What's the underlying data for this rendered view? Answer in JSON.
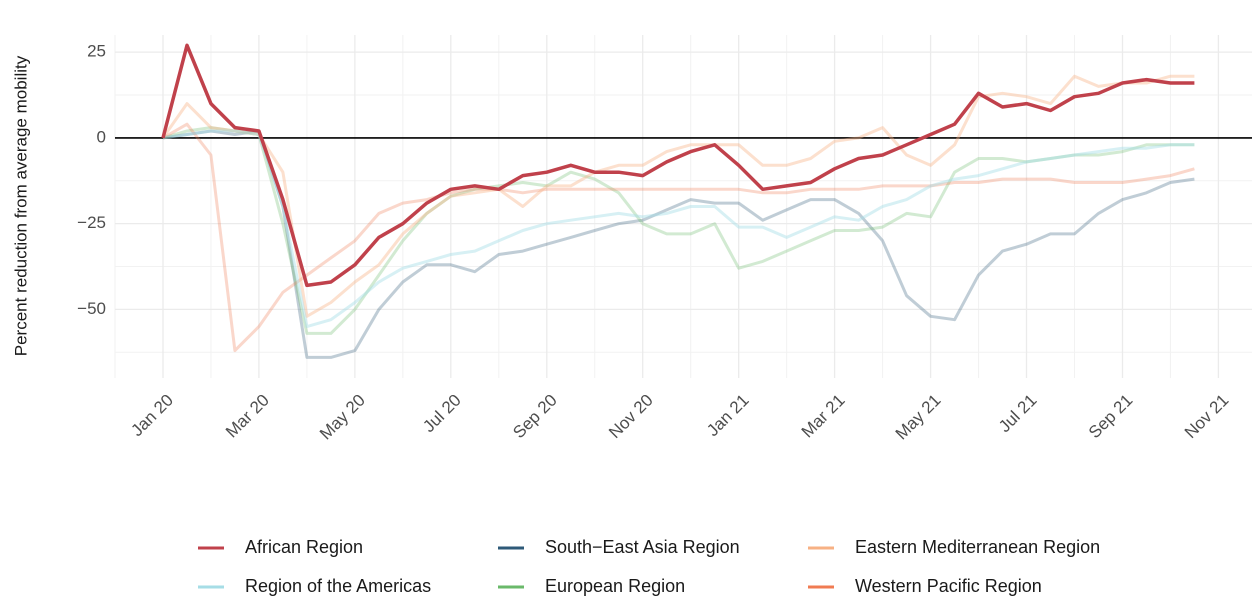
{
  "chart_data": {
    "type": "line",
    "y_label": "Percent reduction from average mobility",
    "x": [
      0,
      0.5,
      1,
      1.5,
      2,
      2.5,
      3,
      3.5,
      4,
      4.5,
      5,
      5.5,
      6,
      6.5,
      7,
      7.5,
      8,
      8.5,
      9,
      9.5,
      10,
      10.5,
      11,
      11.5,
      12,
      12.5,
      13,
      13.5,
      14,
      14.5,
      15,
      15.5,
      16,
      16.5,
      17,
      17.5,
      18,
      18.5,
      19,
      19.5,
      20,
      20.5,
      21,
      21.5
    ],
    "xlim": [
      -1,
      22.7
    ],
    "xticks": [
      {
        "value": 0,
        "label": "Jan 20"
      },
      {
        "value": 2,
        "label": "Mar 20"
      },
      {
        "value": 4,
        "label": "May 20"
      },
      {
        "value": 6,
        "label": "Jul 20"
      },
      {
        "value": 8,
        "label": "Sep 20"
      },
      {
        "value": 10,
        "label": "Nov 20"
      },
      {
        "value": 12,
        "label": "Jan 21"
      },
      {
        "value": 14,
        "label": "Mar 21"
      },
      {
        "value": 16,
        "label": "May 21"
      },
      {
        "value": 18,
        "label": "Jul 21"
      },
      {
        "value": 20,
        "label": "Sep 21"
      },
      {
        "value": 22,
        "label": "Nov 21"
      }
    ],
    "ylim": [
      -70,
      30
    ],
    "yticks": [
      {
        "value": -50,
        "label": "−50"
      },
      {
        "value": -25,
        "label": "−25"
      },
      0,
      25
    ],
    "grid": true,
    "reference_line": 0,
    "legend": "bottom",
    "series": [
      {
        "name": "African Region",
        "color": "#c0414b",
        "opacity": 1,
        "values": [
          0,
          27,
          10,
          3,
          2,
          -18,
          -43,
          -42,
          -37,
          -29,
          -25,
          -19,
          -15,
          -14,
          -15,
          -11,
          -10,
          -8,
          -10,
          -10,
          -11,
          -7,
          -4,
          -2,
          -8,
          -15,
          -14,
          -13,
          -9,
          -6,
          -5,
          -2,
          1,
          4,
          13,
          9,
          10,
          8,
          12,
          13,
          16,
          17,
          16,
          16
        ]
      },
      {
        "name": "Region of the Americas",
        "color": "#a6dde6",
        "opacity": 0.45,
        "values": [
          0,
          1,
          2,
          2,
          1,
          -20,
          -55,
          -53,
          -48,
          -42,
          -38,
          -36,
          -34,
          -33,
          -30,
          -27,
          -25,
          -24,
          -23,
          -22,
          -23,
          -22,
          -20,
          -20,
          -26,
          -26,
          -29,
          -26,
          -23,
          -24,
          -20,
          -18,
          -14,
          -12,
          -11,
          -9,
          -7,
          -6,
          -5,
          -4,
          -3,
          -3,
          -2,
          -2
        ]
      },
      {
        "name": "South−East Asia Region",
        "color": "#2e5a78",
        "opacity": 0.3,
        "values": [
          0,
          1,
          2,
          1,
          2,
          -20,
          -64,
          -64,
          -62,
          -50,
          -42,
          -37,
          -37,
          -39,
          -34,
          -33,
          -31,
          -29,
          -27,
          -25,
          -24,
          -21,
          -18,
          -19,
          -19,
          -24,
          -21,
          -18,
          -18,
          -22,
          -30,
          -46,
          -52,
          -53,
          -40,
          -33,
          -31,
          -28,
          -28,
          -22,
          -18,
          -16,
          -13,
          -12
        ]
      },
      {
        "name": "European Region",
        "color": "#6ab96a",
        "opacity": 0.3,
        "values": [
          0,
          2,
          3,
          2,
          1,
          -25,
          -57,
          -57,
          -50,
          -40,
          -30,
          -22,
          -17,
          -15,
          -14,
          -13,
          -14,
          -10,
          -12,
          -16,
          -25,
          -28,
          -28,
          -25,
          -38,
          -36,
          -33,
          -30,
          -27,
          -27,
          -26,
          -22,
          -23,
          -10,
          -6,
          -6,
          -7,
          -6,
          -5,
          -5,
          -4,
          -2,
          -2,
          -2
        ]
      },
      {
        "name": "Eastern Mediterranean Region",
        "color": "#f7b184",
        "opacity": 0.4,
        "values": [
          0,
          10,
          3,
          2,
          1,
          -10,
          -52,
          -48,
          -42,
          -37,
          -28,
          -22,
          -17,
          -16,
          -15,
          -20,
          -14,
          -14,
          -10,
          -8,
          -8,
          -4,
          -2,
          -2,
          -2,
          -8,
          -8,
          -6,
          -1,
          0,
          3,
          -5,
          -8,
          -2,
          12,
          13,
          12,
          10,
          18,
          15,
          16,
          16,
          18,
          18
        ]
      },
      {
        "name": "Western Pacific Region",
        "color": "#f07b52",
        "opacity": 0.3,
        "values": [
          0,
          4,
          -5,
          -62,
          -55,
          -45,
          -40,
          -35,
          -30,
          -22,
          -19,
          -18,
          -16,
          -15,
          -15,
          -16,
          -15,
          -15,
          -15,
          -15,
          -15,
          -15,
          -15,
          -15,
          -15,
          -16,
          -16,
          -15,
          -15,
          -15,
          -14,
          -14,
          -14,
          -13,
          -13,
          -12,
          -12,
          -12,
          -13,
          -13,
          -13,
          -12,
          -11,
          -9
        ]
      }
    ]
  }
}
